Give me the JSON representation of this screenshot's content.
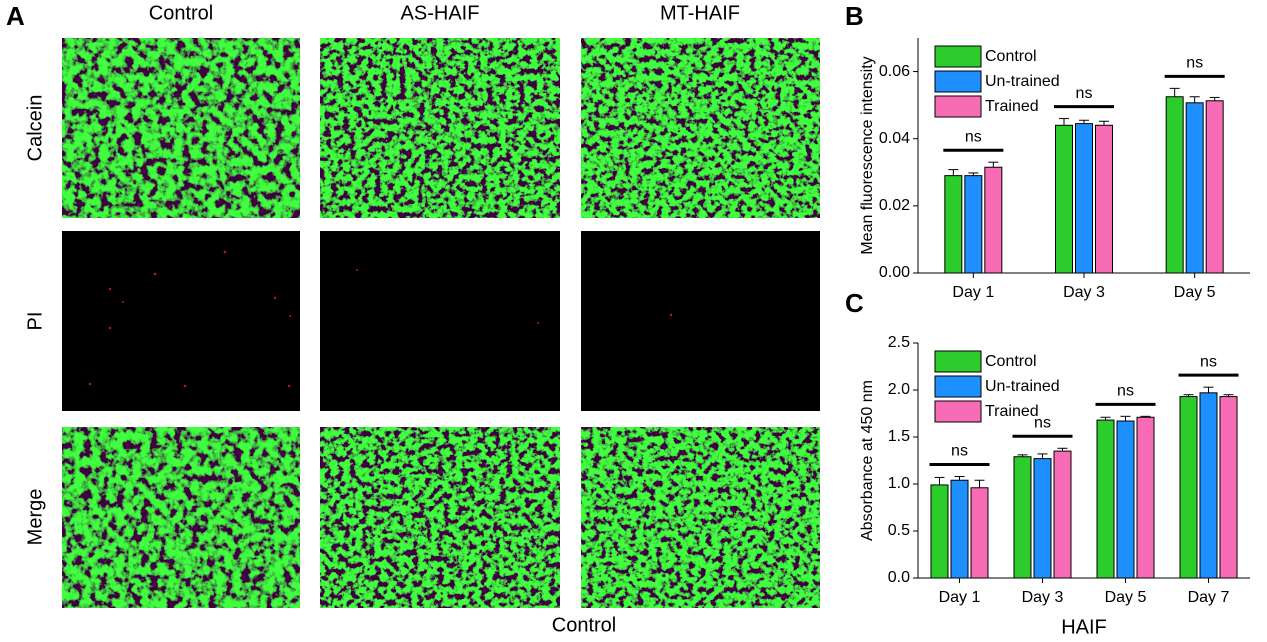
{
  "panel_a": {
    "label": "A",
    "columns": [
      "Control",
      "AS-HAIF",
      "MT-HAIF"
    ],
    "rows": [
      "Calcein",
      "PI",
      "Merge"
    ],
    "footer": "Control"
  },
  "chart_data": [
    {
      "type": "bar",
      "panel": "B",
      "ylabel": "Mean fluorescence intensity",
      "categories": [
        "Day 1",
        "Day 3",
        "Day 5"
      ],
      "series": [
        {
          "name": "Control",
          "color": "#2dcc2d",
          "values": [
            0.029,
            0.044,
            0.0525
          ],
          "errors": [
            0.0018,
            0.002,
            0.0025
          ]
        },
        {
          "name": "Un-trained",
          "color": "#1e8fff",
          "values": [
            0.029,
            0.0445,
            0.0507
          ],
          "errors": [
            0.0008,
            0.001,
            0.0018
          ]
        },
        {
          "name": "Trained",
          "color": "#f76cb4",
          "values": [
            0.0315,
            0.044,
            0.0513
          ],
          "errors": [
            0.0015,
            0.0012,
            0.001
          ]
        }
      ],
      "annotations": [
        "ns",
        "ns",
        "ns"
      ],
      "ylim": [
        0,
        0.07
      ],
      "yticks": [
        {
          "value": 0,
          "label": "0.00"
        },
        {
          "value": 0.02,
          "label": "0.02"
        },
        {
          "value": 0.04,
          "label": "0.04"
        },
        {
          "value": 0.06,
          "label": "0.06"
        }
      ],
      "legend": "upper left"
    },
    {
      "type": "bar",
      "panel": "C",
      "ylabel": "Absorbance at 450 nm",
      "xlabel": "HAIF",
      "categories": [
        "Day 1",
        "Day 3",
        "Day 5",
        "Day 7"
      ],
      "series": [
        {
          "name": "Control",
          "color": "#2dcc2d",
          "values": [
            0.99,
            1.29,
            1.68,
            1.93
          ],
          "errors": [
            0.08,
            0.02,
            0.03,
            0.02
          ]
        },
        {
          "name": "Un-trained",
          "color": "#1e8fff",
          "values": [
            1.04,
            1.27,
            1.67,
            1.97
          ],
          "errors": [
            0.04,
            0.05,
            0.05,
            0.06
          ]
        },
        {
          "name": "Trained",
          "color": "#f76cb4",
          "values": [
            0.96,
            1.35,
            1.71,
            1.93
          ],
          "errors": [
            0.08,
            0.03,
            0.01,
            0.02
          ]
        }
      ],
      "annotations": [
        "ns",
        "ns",
        "ns",
        "ns"
      ],
      "ylim": [
        0,
        2.5
      ],
      "yticks": [
        {
          "value": 0,
          "label": "0.0"
        },
        0.5,
        {
          "value": 1,
          "label": "1.0"
        },
        1.5,
        {
          "value": 2,
          "label": "2.0"
        },
        2.5
      ],
      "legend": "upper left"
    }
  ]
}
